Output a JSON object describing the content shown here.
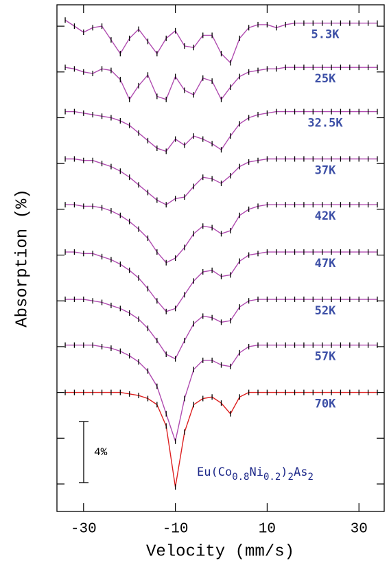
{
  "chart_data": {
    "type": "line",
    "xlabel": "Velocity (mm/s)",
    "ylabel": "Absorption (%)",
    "xlim": [
      -35.8,
      35.5
    ],
    "ylim": [
      0,
      33.2
    ],
    "xticks": [
      -30,
      -10,
      10,
      30
    ],
    "yticks": [
      1.8,
      4.8,
      7.8,
      10.8,
      13.8,
      16.8,
      19.8,
      22.8,
      25.8,
      28.8,
      31.8
    ],
    "point_color": "#000000",
    "label_color": "#3c4fa6",
    "x": [
      -34,
      -32,
      -30,
      -28,
      -26,
      -24,
      -22,
      -20,
      -18,
      -16,
      -14,
      -12,
      -10,
      -8,
      -6,
      -4,
      -2,
      0,
      2,
      4,
      6,
      8,
      10,
      12,
      14,
      16,
      18,
      20,
      22,
      24,
      26,
      28,
      30,
      32,
      34
    ],
    "series": [
      {
        "name": "5.3K",
        "color": "#b04cb0",
        "values": [
          32.2,
          31.8,
          31.4,
          31.7,
          31.8,
          30.9,
          30.0,
          31.0,
          31.6,
          30.8,
          30.0,
          31.0,
          31.5,
          30.5,
          30.4,
          31.2,
          31.2,
          30.0,
          29.4,
          31.0,
          31.7,
          31.9,
          31.9,
          31.7,
          31.9,
          32.0,
          32.0,
          32.0,
          32.0,
          32.0,
          32.0,
          32.0,
          32.0,
          32.0,
          32.0
        ]
      },
      {
        "name": "25K",
        "color": "#b04cb0",
        "values": [
          29.1,
          29.0,
          28.8,
          28.7,
          29.0,
          28.9,
          28.3,
          27.0,
          27.9,
          28.6,
          27.2,
          27.0,
          28.5,
          27.6,
          27.3,
          28.4,
          28.2,
          27.0,
          27.8,
          28.5,
          28.8,
          28.9,
          29.0,
          29.0,
          29.1,
          29.1,
          29.1,
          29.1,
          29.1,
          29.1,
          29.1,
          29.1,
          29.1,
          29.1,
          29.1
        ]
      },
      {
        "name": "32.5K",
        "color": "#b04cb0",
        "values": [
          26.2,
          26.2,
          26.1,
          26.0,
          25.9,
          25.8,
          25.6,
          25.3,
          24.8,
          24.3,
          23.8,
          23.6,
          24.4,
          24.0,
          24.6,
          24.4,
          24.1,
          23.7,
          24.6,
          25.4,
          25.8,
          26.0,
          26.1,
          26.2,
          26.2,
          26.2,
          26.2,
          26.2,
          26.2,
          26.2,
          26.2,
          26.2,
          26.2,
          26.2,
          26.2
        ]
      },
      {
        "name": "37K",
        "color": "#b04cb0",
        "values": [
          23.1,
          23.1,
          23.0,
          23.0,
          22.8,
          22.6,
          22.3,
          21.9,
          21.4,
          20.9,
          20.4,
          20.1,
          20.5,
          20.6,
          21.3,
          21.9,
          21.8,
          21.5,
          22.0,
          22.6,
          22.9,
          23.0,
          23.1,
          23.1,
          23.1,
          23.1,
          23.1,
          23.1,
          23.1,
          23.1,
          23.1,
          23.1,
          23.1,
          23.1,
          23.1
        ]
      },
      {
        "name": "42K",
        "color": "#b04cb0",
        "values": [
          20.1,
          20.1,
          20.0,
          20.0,
          19.9,
          19.7,
          19.4,
          19.0,
          18.5,
          17.9,
          17.0,
          16.3,
          16.6,
          17.3,
          18.2,
          18.7,
          18.6,
          18.2,
          18.4,
          19.4,
          19.8,
          20.0,
          20.1,
          20.1,
          20.1,
          20.1,
          20.1,
          20.1,
          20.1,
          20.1,
          20.1,
          20.1,
          20.1,
          20.1,
          20.1
        ]
      },
      {
        "name": "47K",
        "color": "#b04cb0",
        "values": [
          17.0,
          17.0,
          16.9,
          16.9,
          16.7,
          16.5,
          16.2,
          15.8,
          15.3,
          14.6,
          13.8,
          13.1,
          13.3,
          14.2,
          15.1,
          15.7,
          15.8,
          15.4,
          15.5,
          16.4,
          16.8,
          16.9,
          17.0,
          17.0,
          17.0,
          17.0,
          17.0,
          17.0,
          17.0,
          17.0,
          17.0,
          17.0,
          17.0,
          17.0,
          17.0
        ]
      },
      {
        "name": "52K",
        "color": "#b04cb0",
        "values": [
          13.9,
          13.9,
          13.9,
          13.8,
          13.7,
          13.5,
          13.3,
          13.0,
          12.6,
          12.0,
          11.2,
          10.3,
          10.0,
          11.2,
          12.3,
          12.8,
          12.7,
          12.4,
          12.5,
          13.4,
          13.8,
          13.9,
          13.9,
          13.9,
          13.9,
          13.9,
          13.9,
          13.9,
          13.9,
          13.9,
          13.9,
          13.9,
          13.9,
          13.9,
          13.9
        ]
      },
      {
        "name": "57K",
        "color": "#b04cb0",
        "values": [
          10.9,
          10.9,
          10.9,
          10.9,
          10.8,
          10.7,
          10.5,
          10.2,
          9.8,
          9.2,
          8.2,
          6.4,
          4.6,
          7.4,
          9.3,
          9.9,
          9.9,
          9.6,
          9.5,
          10.4,
          10.8,
          10.9,
          10.9,
          10.9,
          10.9,
          10.9,
          10.9,
          10.9,
          10.9,
          10.9,
          10.9,
          10.9,
          10.9,
          10.9,
          10.9
        ]
      },
      {
        "name": "70K",
        "color": "#dd2020",
        "values": [
          7.8,
          7.8,
          7.8,
          7.8,
          7.8,
          7.8,
          7.8,
          7.7,
          7.6,
          7.4,
          7.0,
          5.6,
          1.6,
          5.2,
          7.0,
          7.4,
          7.5,
          7.1,
          6.4,
          7.5,
          7.8,
          7.8,
          7.8,
          7.8,
          7.8,
          7.8,
          7.8,
          7.8,
          7.8,
          7.8,
          7.8,
          7.8,
          7.8,
          7.8,
          7.8
        ]
      }
    ],
    "scale_bar": {
      "value": 4,
      "label": "4%"
    },
    "formula": [
      "Eu(Co",
      "0.8",
      "Ni",
      "0.2",
      ")",
      "2",
      "As",
      "2"
    ]
  }
}
